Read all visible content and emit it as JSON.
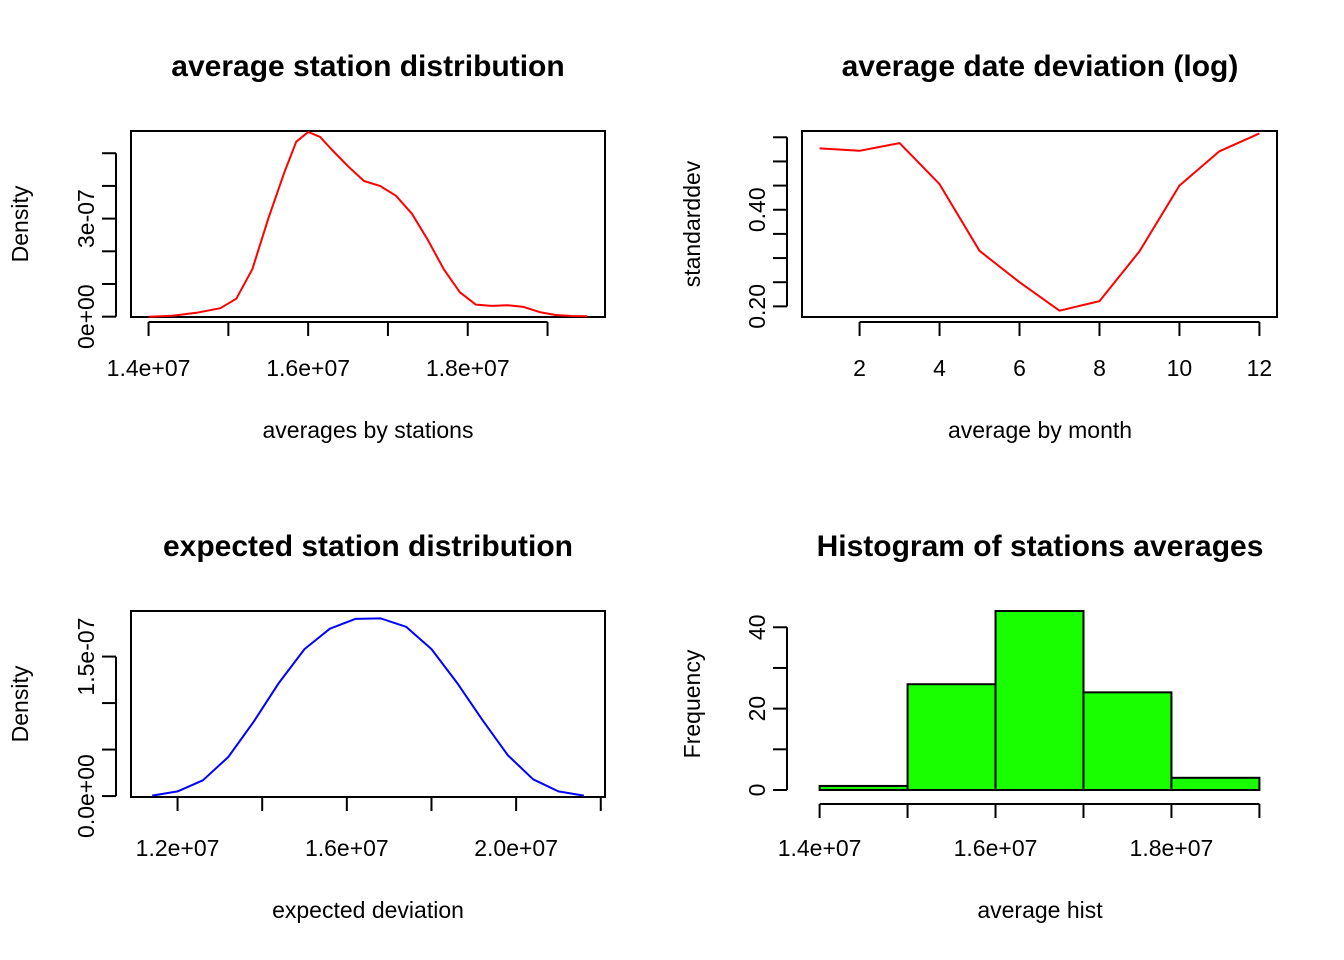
{
  "chart_data": [
    {
      "id": "p1",
      "type": "line",
      "title": "average station distribution",
      "xlabel": "averages by stations",
      "ylabel": "Density",
      "color": "#ff0000",
      "xlim": [
        13780000,
        19720000
      ],
      "ylim": [
        -1e-09,
        5.68e-07
      ],
      "x_ticks": [
        {
          "v": 14000000,
          "label": "1.4e+07"
        },
        {
          "v": 15000000,
          "label": ""
        },
        {
          "v": 16000000,
          "label": "1.6e+07"
        },
        {
          "v": 17000000,
          "label": ""
        },
        {
          "v": 18000000,
          "label": "1.8e+07"
        },
        {
          "v": 19000000,
          "label": ""
        }
      ],
      "y_ticks": [
        {
          "v": 0,
          "label": "0e+00"
        },
        {
          "v": 1e-07,
          "label": ""
        },
        {
          "v": 2e-07,
          "label": ""
        },
        {
          "v": 3e-07,
          "label": "3e-07"
        },
        {
          "v": 4e-07,
          "label": ""
        },
        {
          "v": 5e-07,
          "label": ""
        }
      ],
      "x": [
        14000000,
        14300000,
        14600000,
        14900000,
        15100000,
        15300000,
        15500000,
        15700000,
        15850000,
        16000000,
        16150000,
        16300000,
        16500000,
        16700000,
        16900000,
        17100000,
        17300000,
        17500000,
        17700000,
        17900000,
        18100000,
        18300000,
        18500000,
        18700000,
        18900000,
        19100000,
        19300000,
        19500000
      ],
      "y": [
        0.0,
        3e-09,
        1.2e-08,
        2.6e-08,
        5.5e-08,
        1.45e-07,
        3e-07,
        4.4e-07,
        5.35e-07,
        5.65e-07,
        5.5e-07,
        5.1e-07,
        4.6e-07,
        4.15e-07,
        4e-07,
        3.7e-07,
        3.15e-07,
        2.35e-07,
        1.45e-07,
        7.5e-08,
        3.7e-08,
        3.3e-08,
        3.5e-08,
        3e-08,
        1.4e-08,
        5e-09,
        2e-09,
        1e-09
      ]
    },
    {
      "id": "p2",
      "type": "line",
      "title": "average date deviation (log)",
      "xlabel": "average by month",
      "ylabel": "standarddev",
      "color": "#ff0000",
      "xlim": [
        0.56,
        12.44
      ],
      "ylim": [
        0.178,
        0.563
      ],
      "x_ticks": [
        {
          "v": 2,
          "label": "2"
        },
        {
          "v": 4,
          "label": "4"
        },
        {
          "v": 6,
          "label": "6"
        },
        {
          "v": 8,
          "label": "8"
        },
        {
          "v": 10,
          "label": "10"
        },
        {
          "v": 12,
          "label": "12"
        }
      ],
      "y_ticks": [
        {
          "v": 0.2,
          "label": "0.20"
        },
        {
          "v": 0.25,
          "label": ""
        },
        {
          "v": 0.3,
          "label": ""
        },
        {
          "v": 0.35,
          "label": ""
        },
        {
          "v": 0.4,
          "label": "0.40"
        },
        {
          "v": 0.45,
          "label": ""
        },
        {
          "v": 0.5,
          "label": ""
        },
        {
          "v": 0.55,
          "label": ""
        }
      ],
      "x": [
        1,
        2,
        3,
        4,
        5,
        6,
        7,
        8,
        9,
        10,
        11,
        12
      ],
      "y": [
        0.527,
        0.522,
        0.538,
        0.453,
        0.315,
        0.25,
        0.191,
        0.211,
        0.314,
        0.45,
        0.521,
        0.558
      ]
    },
    {
      "id": "p3",
      "type": "line",
      "title": "expected station distribution",
      "xlabel": "expected deviation",
      "ylabel": "Density",
      "color": "#0000ff",
      "xlim": [
        10900000,
        22100000
      ],
      "ylim": [
        -1e-09,
        1.99e-07
      ],
      "x_ticks": [
        {
          "v": 12000000,
          "label": "1.2e+07"
        },
        {
          "v": 14000000,
          "label": ""
        },
        {
          "v": 16000000,
          "label": "1.6e+07"
        },
        {
          "v": 18000000,
          "label": ""
        },
        {
          "v": 20000000,
          "label": "2.0e+07"
        },
        {
          "v": 22000000,
          "label": ""
        }
      ],
      "y_ticks": [
        {
          "v": 0,
          "label": "0.0e+00"
        },
        {
          "v": 5e-08,
          "label": ""
        },
        {
          "v": 1e-07,
          "label": ""
        },
        {
          "v": 1.5e-07,
          "label": "1.5e-07"
        }
      ],
      "x": [
        11400000,
        12000000,
        12600000,
        13200000,
        13800000,
        14400000,
        15000000,
        15600000,
        16200000,
        16800000,
        17400000,
        18000000,
        18600000,
        19200000,
        19800000,
        20400000,
        21000000,
        21600000
      ],
      "y": [
        5e-10,
        5e-09,
        1.7e-08,
        4.2e-08,
        8e-08,
        1.22e-07,
        1.58e-07,
        1.8e-07,
        1.905e-07,
        1.91e-07,
        1.82e-07,
        1.58e-07,
        1.22e-07,
        8.2e-08,
        4.4e-08,
        1.8e-08,
        5e-09,
        5e-10
      ]
    },
    {
      "id": "p4",
      "type": "bar",
      "title": "Histogram of stations averages",
      "xlabel": "average hist",
      "ylabel": "Frequency",
      "color": "#1aff00",
      "xlim": [
        13800000,
        19200000
      ],
      "ylim": [
        0,
        44
      ],
      "x_ticks": [
        {
          "v": 14000000,
          "label": "1.4e+07"
        },
        {
          "v": 15000000,
          "label": ""
        },
        {
          "v": 16000000,
          "label": "1.6e+07"
        },
        {
          "v": 17000000,
          "label": ""
        },
        {
          "v": 18000000,
          "label": "1.8e+07"
        },
        {
          "v": 19000000,
          "label": ""
        }
      ],
      "y_ticks": [
        {
          "v": 0,
          "label": "0"
        },
        {
          "v": 10,
          "label": ""
        },
        {
          "v": 20,
          "label": "20"
        },
        {
          "v": 30,
          "label": ""
        },
        {
          "v": 40,
          "label": "40"
        }
      ],
      "bins": [
        [
          14000000,
          15000000
        ],
        [
          15000000,
          16000000
        ],
        [
          16000000,
          17000000
        ],
        [
          17000000,
          18000000
        ],
        [
          18000000,
          19000000
        ]
      ],
      "values": [
        1,
        26,
        44,
        24,
        3
      ]
    }
  ]
}
